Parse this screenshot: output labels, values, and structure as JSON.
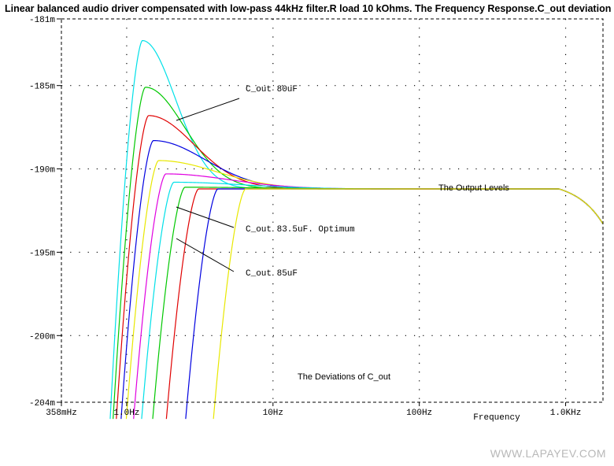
{
  "title": "Linear balanced audio driver compensated with low-pass 44kHz filter.R load 10 kOhms. The Frequency Response.C_out deviation",
  "watermark": "WWW.LAPAYEV.COM",
  "colors": {
    "frame": "#000000",
    "grid": "#000000",
    "annotation_line": "#000000"
  },
  "chart_data": {
    "type": "line",
    "xscale": "log",
    "xlim": [
      0.358,
      1800
    ],
    "ylim": [
      -204,
      -181
    ],
    "y_unit": "m",
    "x_ticks": [
      {
        "value": 0.358,
        "label": "358mHz"
      },
      {
        "value": 1,
        "label": "1.0Hz"
      },
      {
        "value": 10,
        "label": "10Hz"
      },
      {
        "value": 100,
        "label": "100Hz"
      },
      {
        "value": 1000,
        "label": "1.0KHz"
      }
    ],
    "y_ticks": [
      {
        "value": -181,
        "label": "-181m"
      },
      {
        "value": -185,
        "label": "-185m"
      },
      {
        "value": -190,
        "label": "-190m"
      },
      {
        "value": -195,
        "label": "-195m"
      },
      {
        "value": -200,
        "label": "-200m"
      },
      {
        "value": -204,
        "label": "-204m"
      }
    ],
    "xlabel": "Frequency",
    "ylabel": "",
    "grid": "dotted",
    "series": [
      {
        "color": "#00e0e8",
        "peak_x": 1.28,
        "peak_y": -182.3
      },
      {
        "color": "#00c800",
        "peak_x": 1.34,
        "peak_y": -185.1
      },
      {
        "color": "#e00000",
        "peak_x": 1.41,
        "peak_y": -186.8
      },
      {
        "color": "#0000e0",
        "peak_x": 1.52,
        "peak_y": -188.3
      },
      {
        "color": "#e8e800",
        "peak_x": 1.65,
        "peak_y": -189.5
      },
      {
        "color": "#e000e0",
        "peak_x": 1.85,
        "peak_y": -190.3
      },
      {
        "color": "#00e0e8",
        "peak_x": 2.1,
        "peak_y": -190.8
      },
      {
        "color": "#00c800",
        "peak_x": 2.5,
        "peak_y": -191.1
      },
      {
        "color": "#e00000",
        "peak_x": 3.1,
        "peak_y": -191.2
      },
      {
        "color": "#0000e0",
        "peak_x": 4.2,
        "peak_y": -191.2
      },
      {
        "color": "#e8e800",
        "peak_x": 6.5,
        "peak_y": -191.2
      }
    ],
    "steady_level": -191.2,
    "high_freq_end": {
      "x": 1800,
      "y": -193.3
    },
    "annotations": [
      {
        "text": "C_out 80uF",
        "font": "mono"
      },
      {
        "text": "C_out 83.5uF. Optimum",
        "font": "mono"
      },
      {
        "text": "C_out 85uF",
        "font": "mono"
      },
      {
        "text": "The Output Levels",
        "font": "sans"
      },
      {
        "text": "The Deviations of C_out",
        "font": "sans"
      }
    ]
  }
}
